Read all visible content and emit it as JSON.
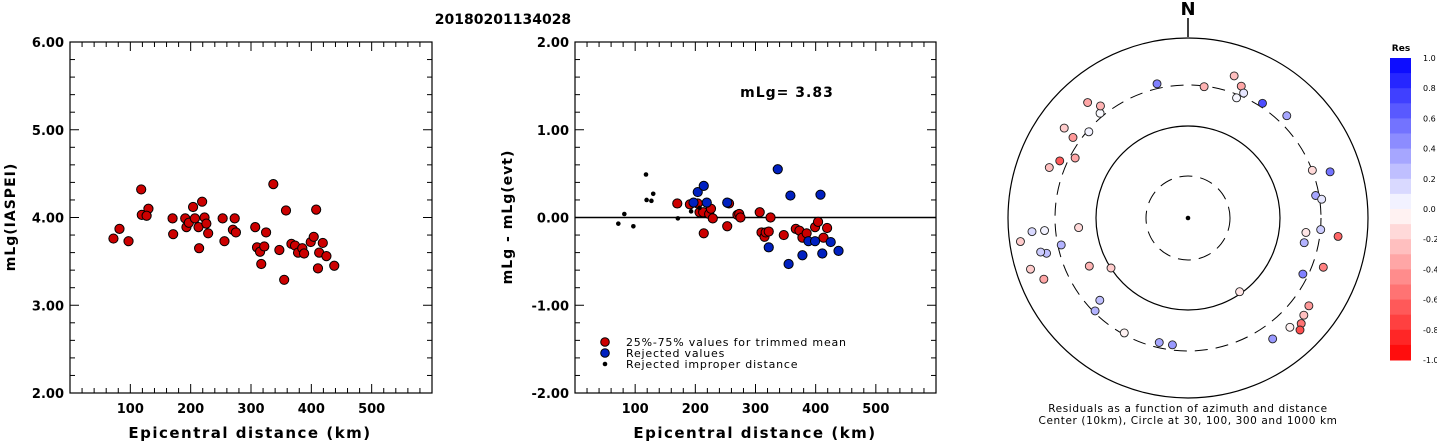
{
  "figure": {
    "title": "20180201134028",
    "north_label": "N",
    "footer_line1": "Residuals as a function of azimuth and distance",
    "footer_line2": "Center (10km), Circle at 30, 100, 300 and 1000 km",
    "colorbar_title": "Res",
    "colorbar_ticks": [
      "1.0",
      "0.8",
      "0.6",
      "0.4",
      "0.2",
      "0.0",
      "-0.2",
      "-0.4",
      "-0.6",
      "-0.8",
      "-1.0"
    ]
  },
  "chart_data": [
    {
      "type": "scatter",
      "title": "",
      "xlabel": "Epicentral distance (km)",
      "ylabel": "mLg(IASPEI)",
      "xlim": [
        0,
        600
      ],
      "ylim": [
        2.0,
        6.0
      ],
      "x_ticks": [
        100,
        200,
        300,
        400,
        500
      ],
      "y_ticks": [
        "2.00",
        "3.00",
        "4.00",
        "5.00",
        "6.00"
      ],
      "grid": false,
      "series": [
        {
          "color": "#cc0000",
          "points": [
            [
              72,
              3.76
            ],
            [
              82,
              3.87
            ],
            [
              97,
              3.73
            ],
            [
              118,
              4.32
            ],
            [
              119,
              4.03
            ],
            [
              130,
              4.1
            ],
            [
              127,
              4.02
            ],
            [
              170,
              3.99
            ],
            [
              171,
              3.81
            ],
            [
              191,
              3.99
            ],
            [
              193,
              3.89
            ],
            [
              197,
              3.94
            ],
            [
              204,
              4.12
            ],
            [
              207,
              3.99
            ],
            [
              213,
              3.89
            ],
            [
              214,
              3.65
            ],
            [
              219,
              4.18
            ],
            [
              223,
              4.0
            ],
            [
              226,
              3.93
            ],
            [
              229,
              3.82
            ],
            [
              253,
              3.99
            ],
            [
              256,
              3.73
            ],
            [
              270,
              3.86
            ],
            [
              273,
              3.99
            ],
            [
              275,
              3.83
            ],
            [
              307,
              3.89
            ],
            [
              310,
              3.66
            ],
            [
              315,
              3.61
            ],
            [
              317,
              3.47
            ],
            [
              322,
              3.67
            ],
            [
              325,
              3.83
            ],
            [
              337,
              4.38
            ],
            [
              347,
              3.63
            ],
            [
              355,
              3.29
            ],
            [
              358,
              4.08
            ],
            [
              367,
              3.7
            ],
            [
              373,
              3.68
            ],
            [
              378,
              3.6
            ],
            [
              385,
              3.65
            ],
            [
              388,
              3.59
            ],
            [
              399,
              3.72
            ],
            [
              404,
              3.78
            ],
            [
              408,
              4.09
            ],
            [
              411,
              3.42
            ],
            [
              413,
              3.6
            ],
            [
              419,
              3.71
            ],
            [
              425,
              3.56
            ],
            [
              438,
              3.45
            ]
          ]
        }
      ]
    },
    {
      "type": "scatter",
      "title": "",
      "xlabel": "Epicentral distance (km)",
      "ylabel": "mLg - mLg(evt)",
      "annotation": "mLg= 3.83",
      "xlim": [
        0,
        600
      ],
      "ylim": [
        -2.0,
        2.0
      ],
      "x_ticks": [
        100,
        200,
        300,
        400,
        500
      ],
      "y_ticks": [
        "-2.00",
        "-1.00",
        "0.00",
        "1.00",
        "2.00"
      ],
      "zero_line": true,
      "grid": false,
      "legend": {
        "placement": "bottom-left",
        "entries": [
          {
            "label": "25%-75% values for trimmed mean",
            "marker": "red-circle"
          },
          {
            "label": "Rejected values",
            "marker": "blue-circle"
          },
          {
            "label": "Rejected improper distance",
            "marker": "black-dot"
          }
        ]
      },
      "series": [
        {
          "name": "25%-75% values for trimmed mean",
          "color": "#cc0000",
          "points": [
            [
              170,
              0.16
            ],
            [
              191,
              0.15
            ],
            [
              204,
              0.16
            ],
            [
              207,
              0.06
            ],
            [
              213,
              0.06
            ],
            [
              214,
              -0.18
            ],
            [
              223,
              0.04
            ],
            [
              226,
              0.1
            ],
            [
              229,
              -0.01
            ],
            [
              253,
              -0.1
            ],
            [
              256,
              0.16
            ],
            [
              270,
              0.03
            ],
            [
              273,
              0.04
            ],
            [
              275,
              0.0
            ],
            [
              307,
              0.06
            ],
            [
              310,
              -0.17
            ],
            [
              315,
              -0.22
            ],
            [
              317,
              -0.17
            ],
            [
              322,
              -0.16
            ],
            [
              325,
              0.0
            ],
            [
              347,
              -0.2
            ],
            [
              367,
              -0.13
            ],
            [
              373,
              -0.15
            ],
            [
              378,
              -0.23
            ],
            [
              385,
              -0.18
            ],
            [
              399,
              -0.11
            ],
            [
              404,
              -0.05
            ],
            [
              413,
              -0.23
            ],
            [
              419,
              -0.12
            ]
          ]
        },
        {
          "name": "Rejected values",
          "color": "#0020c0",
          "points": [
            [
              197,
              0.17
            ],
            [
              204,
              0.29
            ],
            [
              214,
              0.36
            ],
            [
              219,
              0.17
            ],
            [
              253,
              0.17
            ],
            [
              322,
              -0.34
            ],
            [
              337,
              0.55
            ],
            [
              355,
              -0.53
            ],
            [
              358,
              0.25
            ],
            [
              378,
              -0.43
            ],
            [
              388,
              -0.27
            ],
            [
              399,
              -0.27
            ],
            [
              408,
              0.26
            ],
            [
              411,
              -0.41
            ],
            [
              425,
              -0.28
            ],
            [
              438,
              -0.38
            ]
          ]
        },
        {
          "name": "Rejected improper distance",
          "color": "#000000",
          "points": [
            [
              72,
              -0.07
            ],
            [
              82,
              0.04
            ],
            [
              97,
              -0.1
            ],
            [
              118,
              0.49
            ],
            [
              119,
              0.2
            ],
            [
              130,
              0.27
            ],
            [
              127,
              0.19
            ],
            [
              171,
              -0.01
            ],
            [
              193,
              0.07
            ],
            [
              207,
              0.11
            ]
          ]
        }
      ]
    },
    {
      "type": "scatter",
      "subtype": "polar",
      "title": "",
      "rings_km": [
        30,
        100,
        300,
        1000
      ],
      "dashed_rings_km": [
        30,
        300
      ],
      "center_km": 10,
      "color_scale": {
        "min": -1.0,
        "max": 1.0,
        "neg_color": "#ff0000",
        "pos_color": "#0000ff"
      },
      "points": [
        {
          "az": 347,
          "r": 0.765,
          "res": 0.5
        },
        {
          "az": 7,
          "r": 0.735,
          "res": -0.3
        },
        {
          "az": 18,
          "r": 0.83,
          "res": -0.25
        },
        {
          "az": 22,
          "r": 0.79,
          "res": -0.35
        },
        {
          "az": 22,
          "r": 0.72,
          "res": 0.03
        },
        {
          "az": 24,
          "r": 0.76,
          "res": 0.1
        },
        {
          "az": 33,
          "r": 0.76,
          "res": 0.7
        },
        {
          "az": 44,
          "r": 0.79,
          "res": 0.35
        },
        {
          "az": 69,
          "r": 0.74,
          "res": -0.15
        },
        {
          "az": 72,
          "r": 0.83,
          "res": 0.55
        },
        {
          "az": 80,
          "r": 0.72,
          "res": 0.35
        },
        {
          "az": 82,
          "r": 0.75,
          "res": 0.1
        },
        {
          "az": 95,
          "r": 0.74,
          "res": 0.2
        },
        {
          "az": 97,
          "r": 0.84,
          "res": -0.6
        },
        {
          "az": 97,
          "r": 0.66,
          "res": -0.1
        },
        {
          "az": 102,
          "r": 0.66,
          "res": 0.3
        },
        {
          "az": 110,
          "r": 0.8,
          "res": -0.5
        },
        {
          "az": 116,
          "r": 0.71,
          "res": 0.5
        },
        {
          "az": 126,
          "r": 0.83,
          "res": -0.4
        },
        {
          "az": 130,
          "r": 0.84,
          "res": -0.25
        },
        {
          "az": 133,
          "r": 0.86,
          "res": -0.55
        },
        {
          "az": 135,
          "r": 0.88,
          "res": -0.7
        },
        {
          "az": 137,
          "r": 0.83,
          "res": -0.05
        },
        {
          "az": 145,
          "r": 0.82,
          "res": 0.4
        },
        {
          "az": 145,
          "r": 0.5,
          "res": -0.1
        },
        {
          "az": 187,
          "r": 0.71,
          "res": 0.4
        },
        {
          "az": 193,
          "r": 0.71,
          "res": 0.35
        },
        {
          "az": 209,
          "r": 0.73,
          "res": -0.05
        },
        {
          "az": 225,
          "r": 0.73,
          "res": 0.3
        },
        {
          "az": 227,
          "r": 0.67,
          "res": 0.25
        },
        {
          "az": 237,
          "r": 0.51,
          "res": -0.2
        },
        {
          "az": 244,
          "r": 0.61,
          "res": -0.3
        },
        {
          "az": 247,
          "r": 0.87,
          "res": -0.35
        },
        {
          "az": 252,
          "r": 0.92,
          "res": -0.2
        },
        {
          "az": 256,
          "r": 0.81,
          "res": 0.25
        },
        {
          "az": 257,
          "r": 0.84,
          "res": 0.2
        },
        {
          "az": 258,
          "r": 0.72,
          "res": 0.3
        },
        {
          "az": 262,
          "r": 0.94,
          "res": -0.2
        },
        {
          "az": 265,
          "r": 0.87,
          "res": 0.15
        },
        {
          "az": 265,
          "r": 0.8,
          "res": 0.05
        },
        {
          "az": 265,
          "r": 0.61,
          "res": -0.15
        },
        {
          "az": 290,
          "r": 0.82,
          "res": -0.25
        },
        {
          "az": 294,
          "r": 0.78,
          "res": -0.65
        },
        {
          "az": 298,
          "r": 0.71,
          "res": -0.35
        },
        {
          "az": 305,
          "r": 0.78,
          "res": -0.4
        },
        {
          "az": 306,
          "r": 0.85,
          "res": -0.2
        },
        {
          "az": 311,
          "r": 0.73,
          "res": 0.05
        },
        {
          "az": 319,
          "r": 0.85,
          "res": -0.35
        },
        {
          "az": 320,
          "r": 0.76,
          "res": 0.02
        },
        {
          "az": 322,
          "r": 0.79,
          "res": -0.3
        }
      ]
    }
  ]
}
